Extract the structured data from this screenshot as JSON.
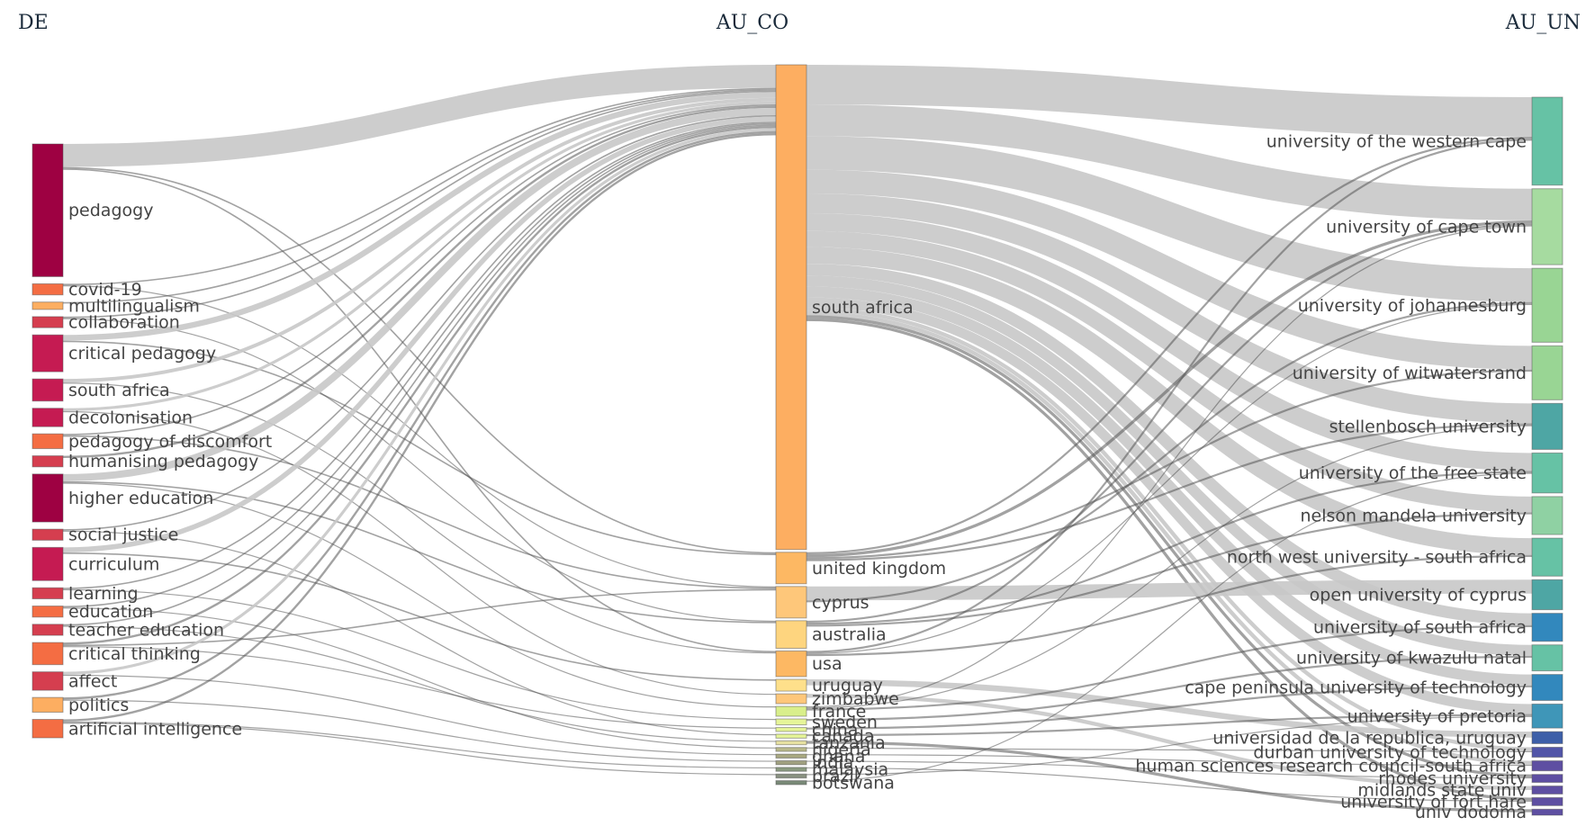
{
  "chart_data": {
    "type": "sankey",
    "columns": [
      {
        "header": "DE",
        "nodes": [
          {
            "name": "pedagogy",
            "color": "#9e0142",
            "weight": 18
          },
          {
            "name": "covid-19",
            "color": "#f46d43",
            "weight": 1.5
          },
          {
            "name": "multilingualism",
            "color": "#fdae61",
            "weight": 1
          },
          {
            "name": "collaboration",
            "color": "#d53e4f",
            "weight": 1.5
          },
          {
            "name": "critical pedagogy",
            "color": "#c51b52",
            "weight": 5
          },
          {
            "name": "south africa",
            "color": "#c51b52",
            "weight": 3
          },
          {
            "name": "decolonisation",
            "color": "#c51b52",
            "weight": 2.5
          },
          {
            "name": "pedagogy of discomfort",
            "color": "#f46d43",
            "weight": 2
          },
          {
            "name": "humanising pedagogy",
            "color": "#d53e4f",
            "weight": 1.5
          },
          {
            "name": "higher education",
            "color": "#9e0142",
            "weight": 6.5
          },
          {
            "name": "social justice",
            "color": "#d53e4f",
            "weight": 1.5
          },
          {
            "name": "curriculum",
            "color": "#c51b52",
            "weight": 4.5
          },
          {
            "name": "learning",
            "color": "#d53e4f",
            "weight": 1.5
          },
          {
            "name": "education",
            "color": "#f46d43",
            "weight": 1.5
          },
          {
            "name": "teacher education",
            "color": "#d53e4f",
            "weight": 1.5
          },
          {
            "name": "critical thinking",
            "color": "#f46d43",
            "weight": 3
          },
          {
            "name": "affect",
            "color": "#d53e4f",
            "weight": 2.5
          },
          {
            "name": "politics",
            "color": "#fdae61",
            "weight": 2
          },
          {
            "name": "artificial intelligence",
            "color": "#f46d43",
            "weight": 2.5
          }
        ]
      },
      {
        "header": "AU_CO",
        "nodes": [
          {
            "name": "south africa",
            "color": "#fdae61",
            "weight": 123
          },
          {
            "name": "united kingdom",
            "color": "#fdb863",
            "weight": 8
          },
          {
            "name": "cyprus",
            "color": "#fec77a",
            "weight": 8
          },
          {
            "name": "australia",
            "color": "#fed57f",
            "weight": 7
          },
          {
            "name": "usa",
            "color": "#fdb863",
            "weight": 6.5
          },
          {
            "name": "uruguay",
            "color": "#fee08b",
            "weight": 3
          },
          {
            "name": "zimbabwe",
            "color": "#fec77a",
            "weight": 2.5
          },
          {
            "name": "france",
            "color": "#d9ef8b",
            "weight": 2.5
          },
          {
            "name": "sweden",
            "color": "#e6f598",
            "weight": 1.5
          },
          {
            "name": "china",
            "color": "#e6f598",
            "weight": 1
          },
          {
            "name": "canada",
            "color": "#e6f598",
            "weight": 1
          },
          {
            "name": "tanzania",
            "color": "#e6e0a0",
            "weight": 1
          },
          {
            "name": "nigeria",
            "color": "#b8b88a",
            "weight": 1
          },
          {
            "name": "ghana",
            "color": "#a8a880",
            "weight": 1
          },
          {
            "name": "india",
            "color": "#a0a080",
            "weight": 1
          },
          {
            "name": "malaysia",
            "color": "#8a9a80",
            "weight": 1
          },
          {
            "name": "brazil",
            "color": "#889080",
            "weight": 1
          },
          {
            "name": "botswana",
            "color": "#7a8a78",
            "weight": 1
          }
        ]
      },
      {
        "header": "AU_UN",
        "nodes": [
          {
            "name": "university of the western cape",
            "color": "#66c2a5",
            "weight": 22
          },
          {
            "name": "university of cape town",
            "color": "#a6dba0",
            "weight": 19
          },
          {
            "name": "university of johannesburg",
            "color": "#99d594",
            "weight": 18.5
          },
          {
            "name": "university of witwatersrand",
            "color": "#99d594",
            "weight": 13.5
          },
          {
            "name": "stellenbosch university",
            "color": "#4ea6a4",
            "weight": 11.5
          },
          {
            "name": "university of the free state",
            "color": "#66c2a5",
            "weight": 10
          },
          {
            "name": "nelson mandela university",
            "color": "#8fd1a3",
            "weight": 9.5
          },
          {
            "name": "north west university - south africa",
            "color": "#66c2a5",
            "weight": 9.5
          },
          {
            "name": "open university of cyprus",
            "color": "#4ea6a4",
            "weight": 7.5
          },
          {
            "name": "university of south africa",
            "color": "#3288bd",
            "weight": 7
          },
          {
            "name": "university of kwazulu natal",
            "color": "#66c2a5",
            "weight": 6.5
          },
          {
            "name": "cape peninsula university of technology",
            "color": "#3288bd",
            "weight": 6.5
          },
          {
            "name": "university of pretoria",
            "color": "#3f96b8",
            "weight": 6
          },
          {
            "name": "universidad de la republica, uruguay",
            "color": "#3d5fa8",
            "weight": 3
          },
          {
            "name": "durban university of technology",
            "color": "#5155a8",
            "weight": 2.5
          },
          {
            "name": "human sciences research council-south africa",
            "color": "#5e4fa2",
            "weight": 2.5
          },
          {
            "name": "rhodes university",
            "color": "#5e4fa2",
            "weight": 2
          },
          {
            "name": "midlands state univ",
            "color": "#5e4fa2",
            "weight": 2
          },
          {
            "name": "university of fort hare",
            "color": "#5e4fa2",
            "weight": 2
          },
          {
            "name": "univ dodoma",
            "color": "#5e4fa2",
            "weight": 1.5
          }
        ]
      }
    ],
    "links": [
      [
        "pedagogy",
        "south africa",
        16
      ],
      [
        "pedagogy",
        "united kingdom",
        1
      ],
      [
        "pedagogy",
        "usa",
        1
      ],
      [
        "covid-19",
        "south africa",
        1
      ],
      [
        "covid-19",
        "cyprus",
        0.5
      ],
      [
        "multilingualism",
        "south africa",
        1
      ],
      [
        "collaboration",
        "south africa",
        1
      ],
      [
        "collaboration",
        "australia",
        0.5
      ],
      [
        "critical pedagogy",
        "south africa",
        4
      ],
      [
        "critical pedagogy",
        "united kingdom",
        1
      ],
      [
        "south africa",
        "south africa",
        2.5
      ],
      [
        "south africa",
        "usa",
        0.5
      ],
      [
        "decolonisation",
        "south africa",
        2
      ],
      [
        "decolonisation",
        "zimbabwe",
        0.5
      ],
      [
        "pedagogy of discomfort",
        "south africa",
        1
      ],
      [
        "pedagogy of discomfort",
        "cyprus",
        1
      ],
      [
        "humanising pedagogy",
        "south africa",
        1.5
      ],
      [
        "higher education",
        "south africa",
        5
      ],
      [
        "higher education",
        "australia",
        1
      ],
      [
        "higher education",
        "france",
        0.5
      ],
      [
        "social justice",
        "south africa",
        1
      ],
      [
        "social justice",
        "canada",
        0.5
      ],
      [
        "curriculum",
        "south africa",
        3.5
      ],
      [
        "curriculum",
        "uruguay",
        1
      ],
      [
        "learning",
        "south africa",
        1
      ],
      [
        "learning",
        "sweden",
        0.5
      ],
      [
        "education",
        "south africa",
        1
      ],
      [
        "education",
        "nigeria",
        0.5
      ],
      [
        "teacher education",
        "south africa",
        1
      ],
      [
        "teacher education",
        "tanzania",
        0.5
      ],
      [
        "critical thinking",
        "south africa",
        1.5
      ],
      [
        "critical thinking",
        "cyprus",
        1
      ],
      [
        "critical thinking",
        "china",
        0.5
      ],
      [
        "affect",
        "south africa",
        2
      ],
      [
        "affect",
        "ghana",
        0.5
      ],
      [
        "politics",
        "south africa",
        1.5
      ],
      [
        "politics",
        "india",
        0.5
      ],
      [
        "artificial intelligence",
        "south africa",
        1.5
      ],
      [
        "artificial intelligence",
        "malaysia",
        0.5
      ],
      [
        "artificial intelligence",
        "brazil",
        0.5
      ],
      [
        "south africa",
        "university of the western cape",
        20
      ],
      [
        "south africa",
        "university of cape town",
        16
      ],
      [
        "south africa",
        "university of johannesburg",
        17
      ],
      [
        "south africa",
        "university of witwatersrand",
        12
      ],
      [
        "south africa",
        "stellenbosch university",
        10
      ],
      [
        "south africa",
        "university of the free state",
        9
      ],
      [
        "south africa",
        "nelson mandela university",
        8
      ],
      [
        "south africa",
        "north west university - south africa",
        8.5
      ],
      [
        "south africa",
        "university of south africa",
        6
      ],
      [
        "south africa",
        "university of kwazulu natal",
        5.5
      ],
      [
        "south africa",
        "cape peninsula university of technology",
        5.5
      ],
      [
        "south africa",
        "university of pretoria",
        5
      ],
      [
        "south africa",
        "durban university of technology",
        2
      ],
      [
        "south africa",
        "human sciences research council-south africa",
        2
      ],
      [
        "south africa",
        "rhodes university",
        1.5
      ],
      [
        "south africa",
        "university of fort hare",
        1.5
      ],
      [
        "united kingdom",
        "university of the western cape",
        1
      ],
      [
        "united kingdom",
        "university of cape town",
        1.5
      ],
      [
        "united kingdom",
        "university of witwatersrand",
        1
      ],
      [
        "united kingdom",
        "stellenbosch university",
        1
      ],
      [
        "cyprus",
        "open university of cyprus",
        7
      ],
      [
        "cyprus",
        "university of johannesburg",
        1
      ],
      [
        "australia",
        "university of cape town",
        1
      ],
      [
        "australia",
        "university of the free state",
        1
      ],
      [
        "australia",
        "nelson mandela university",
        1
      ],
      [
        "usa",
        "university of the western cape",
        1
      ],
      [
        "usa",
        "university of johannesburg",
        0.5
      ],
      [
        "usa",
        "north west university - south africa",
        1
      ],
      [
        "uruguay",
        "universidad de la republica, uruguay",
        3
      ],
      [
        "zimbabwe",
        "midlands state univ",
        2
      ],
      [
        "france",
        "university of cape town",
        0.5
      ],
      [
        "france",
        "stellenbosch university",
        0.5
      ],
      [
        "france",
        "university of south africa",
        1
      ],
      [
        "sweden",
        "university of kwazulu natal",
        1
      ],
      [
        "china",
        "cape peninsula university of technology",
        1
      ],
      [
        "canada",
        "university of pretoria",
        1
      ],
      [
        "tanzania",
        "univ dodoma",
        1.5
      ],
      [
        "nigeria",
        "durban university of technology",
        0.5
      ],
      [
        "ghana",
        "human sciences research council-south africa",
        0.5
      ],
      [
        "india",
        "rhodes university",
        0.5
      ],
      [
        "malaysia",
        "university of fort hare",
        0.5
      ],
      [
        "brazil",
        "university of pretoria",
        0.5
      ],
      [
        "botswana",
        "university of the free state",
        0.5
      ]
    ]
  }
}
